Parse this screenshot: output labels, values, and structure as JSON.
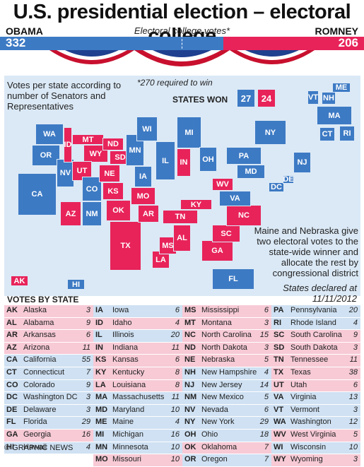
{
  "title": "U.S. presidential election – electoral college",
  "candidates": {
    "left": "OBAMA",
    "right": "ROMNEY"
  },
  "subtitle": "Electoral college votes*",
  "totals": {
    "obama": "332",
    "romney": "206"
  },
  "colors": {
    "democrat": "#3d7ac4",
    "republican": "#e8235a",
    "dem_light": "#cfe1f3",
    "rep_light": "#f7cad6",
    "ocean": "#dbe9f6"
  },
  "map": {
    "note_left": "Votes per state according to number of Senators and Representatives",
    "note_required": "*270 required to win",
    "states_won_label": "STATES WON",
    "states_won_dem": "27",
    "states_won_rep": "24",
    "note_split": "Maine and Nebraska give two electoral votes to the state-wide winner and allocate the rest by congressional district",
    "declared": "States declared at 11/11/2012"
  },
  "map_states": [
    {
      "abbr": "WA",
      "party": "D"
    },
    {
      "abbr": "OR",
      "party": "D"
    },
    {
      "abbr": "CA",
      "party": "D"
    },
    {
      "abbr": "NV",
      "party": "D"
    },
    {
      "abbr": "ID",
      "party": "R"
    },
    {
      "abbr": "MT",
      "party": "R"
    },
    {
      "abbr": "WY",
      "party": "R"
    },
    {
      "abbr": "UT",
      "party": "R"
    },
    {
      "abbr": "AZ",
      "party": "R"
    },
    {
      "abbr": "CO",
      "party": "D"
    },
    {
      "abbr": "NM",
      "party": "D"
    },
    {
      "abbr": "ND",
      "party": "R"
    },
    {
      "abbr": "SD",
      "party": "R"
    },
    {
      "abbr": "NE",
      "party": "R"
    },
    {
      "abbr": "KS",
      "party": "R"
    },
    {
      "abbr": "OK",
      "party": "R"
    },
    {
      "abbr": "TX",
      "party": "R"
    },
    {
      "abbr": "MN",
      "party": "D"
    },
    {
      "abbr": "IA",
      "party": "D"
    },
    {
      "abbr": "MO",
      "party": "R"
    },
    {
      "abbr": "AR",
      "party": "R"
    },
    {
      "abbr": "LA",
      "party": "R"
    },
    {
      "abbr": "WI",
      "party": "D"
    },
    {
      "abbr": "IL",
      "party": "D"
    },
    {
      "abbr": "MI",
      "party": "D"
    },
    {
      "abbr": "IN",
      "party": "R"
    },
    {
      "abbr": "OH",
      "party": "D"
    },
    {
      "abbr": "KY",
      "party": "R"
    },
    {
      "abbr": "TN",
      "party": "R"
    },
    {
      "abbr": "MS",
      "party": "R"
    },
    {
      "abbr": "AL",
      "party": "R"
    },
    {
      "abbr": "GA",
      "party": "R"
    },
    {
      "abbr": "FL",
      "party": "D"
    },
    {
      "abbr": "SC",
      "party": "R"
    },
    {
      "abbr": "NC",
      "party": "R"
    },
    {
      "abbr": "VA",
      "party": "D"
    },
    {
      "abbr": "WV",
      "party": "R"
    },
    {
      "abbr": "PA",
      "party": "D"
    },
    {
      "abbr": "NY",
      "party": "D"
    },
    {
      "abbr": "MD",
      "party": "D"
    },
    {
      "abbr": "DC",
      "party": "D"
    },
    {
      "abbr": "DE",
      "party": "D"
    },
    {
      "abbr": "NJ",
      "party": "D"
    },
    {
      "abbr": "CT",
      "party": "D"
    },
    {
      "abbr": "RI",
      "party": "D"
    },
    {
      "abbr": "MA",
      "party": "D"
    },
    {
      "abbr": "VT",
      "party": "D"
    },
    {
      "abbr": "NH",
      "party": "D"
    },
    {
      "abbr": "ME",
      "party": "D"
    },
    {
      "abbr": "AK",
      "party": "R"
    },
    {
      "abbr": "HI",
      "party": "D"
    }
  ],
  "table_title": "VOTES BY STATE",
  "chart_data": {
    "type": "table",
    "title": "U.S. presidential election – electoral college",
    "columns": [
      [
        {
          "abbr": "AK",
          "name": "Alaska",
          "votes": 3,
          "party": "R"
        },
        {
          "abbr": "AL",
          "name": "Alabama",
          "votes": 9,
          "party": "R"
        },
        {
          "abbr": "AR",
          "name": "Arkansas",
          "votes": 6,
          "party": "R"
        },
        {
          "abbr": "AZ",
          "name": "Arizona",
          "votes": 11,
          "party": "R"
        },
        {
          "abbr": "CA",
          "name": "California",
          "votes": 55,
          "party": "D"
        },
        {
          "abbr": "CT",
          "name": "Connecticut",
          "votes": 7,
          "party": "D"
        },
        {
          "abbr": "CO",
          "name": "Colorado",
          "votes": 9,
          "party": "D"
        },
        {
          "abbr": "DC",
          "name": "Washington DC",
          "votes": 3,
          "party": "D"
        },
        {
          "abbr": "DE",
          "name": "Delaware",
          "votes": 3,
          "party": "D"
        },
        {
          "abbr": "FL",
          "name": "Florida",
          "votes": 29,
          "party": "D"
        },
        {
          "abbr": "GA",
          "name": "Georgia",
          "votes": 16,
          "party": "R"
        },
        {
          "abbr": "HI",
          "name": "Hawaii",
          "votes": 4,
          "party": "D"
        }
      ],
      [
        {
          "abbr": "IA",
          "name": "Iowa",
          "votes": 6,
          "party": "D"
        },
        {
          "abbr": "ID",
          "name": "Idaho",
          "votes": 4,
          "party": "R"
        },
        {
          "abbr": "IL",
          "name": "Illinois",
          "votes": 20,
          "party": "D"
        },
        {
          "abbr": "IN",
          "name": "Indiana",
          "votes": 11,
          "party": "R"
        },
        {
          "abbr": "KS",
          "name": "Kansas",
          "votes": 6,
          "party": "R"
        },
        {
          "abbr": "KY",
          "name": "Kentucky",
          "votes": 8,
          "party": "R"
        },
        {
          "abbr": "LA",
          "name": "Louisiana",
          "votes": 8,
          "party": "R"
        },
        {
          "abbr": "MA",
          "name": "Massachusetts",
          "votes": 11,
          "party": "D"
        },
        {
          "abbr": "MD",
          "name": "Maryland",
          "votes": 10,
          "party": "D"
        },
        {
          "abbr": "ME",
          "name": "Maine",
          "votes": 4,
          "party": "D"
        },
        {
          "abbr": "MI",
          "name": "Michigan",
          "votes": 16,
          "party": "D"
        },
        {
          "abbr": "MN",
          "name": "Minnesota",
          "votes": 10,
          "party": "D"
        },
        {
          "abbr": "MO",
          "name": "Missouri",
          "votes": 10,
          "party": "R"
        }
      ],
      [
        {
          "abbr": "MS",
          "name": "Mississippi",
          "votes": 6,
          "party": "R"
        },
        {
          "abbr": "MT",
          "name": "Montana",
          "votes": 3,
          "party": "R"
        },
        {
          "abbr": "NC",
          "name": "North Carolina",
          "votes": 15,
          "party": "R"
        },
        {
          "abbr": "ND",
          "name": "North Dakota",
          "votes": 3,
          "party": "R"
        },
        {
          "abbr": "NE",
          "name": "Nebraska",
          "votes": 5,
          "party": "R"
        },
        {
          "abbr": "NH",
          "name": "New Hampshire",
          "votes": 4,
          "party": "D"
        },
        {
          "abbr": "NJ",
          "name": "New Jersey",
          "votes": 14,
          "party": "D"
        },
        {
          "abbr": "NM",
          "name": "New Mexico",
          "votes": 5,
          "party": "D"
        },
        {
          "abbr": "NV",
          "name": "Nevada",
          "votes": 6,
          "party": "D"
        },
        {
          "abbr": "NY",
          "name": "New York",
          "votes": 29,
          "party": "D"
        },
        {
          "abbr": "OH",
          "name": "Ohio",
          "votes": 18,
          "party": "D"
        },
        {
          "abbr": "OK",
          "name": "Oklahoma",
          "votes": 7,
          "party": "R"
        },
        {
          "abbr": "OR",
          "name": "Oregon",
          "votes": 7,
          "party": "D"
        }
      ],
      [
        {
          "abbr": "PA",
          "name": "Pennsylvania",
          "votes": 20,
          "party": "D"
        },
        {
          "abbr": "RI",
          "name": "Rhode Island",
          "votes": 4,
          "party": "D"
        },
        {
          "abbr": "SC",
          "name": "South Carolina",
          "votes": 9,
          "party": "R"
        },
        {
          "abbr": "SD",
          "name": "South Dakota",
          "votes": 3,
          "party": "R"
        },
        {
          "abbr": "TN",
          "name": "Tennessee",
          "votes": 11,
          "party": "R"
        },
        {
          "abbr": "TX",
          "name": "Texas",
          "votes": 38,
          "party": "R"
        },
        {
          "abbr": "UT",
          "name": "Utah",
          "votes": 6,
          "party": "R"
        },
        {
          "abbr": "VA",
          "name": "Virginia",
          "votes": 13,
          "party": "D"
        },
        {
          "abbr": "VT",
          "name": "Vermont",
          "votes": 3,
          "party": "D"
        },
        {
          "abbr": "WA",
          "name": "Washington",
          "votes": 12,
          "party": "D"
        },
        {
          "abbr": "WV",
          "name": "West Virginia",
          "votes": 5,
          "party": "R"
        },
        {
          "abbr": "WI",
          "name": "Wisconsin",
          "votes": 10,
          "party": "D"
        },
        {
          "abbr": "WY",
          "name": "Wyoming",
          "votes": 3,
          "party": "R"
        }
      ]
    ]
  },
  "footer": "© GRAPHIC NEWS"
}
